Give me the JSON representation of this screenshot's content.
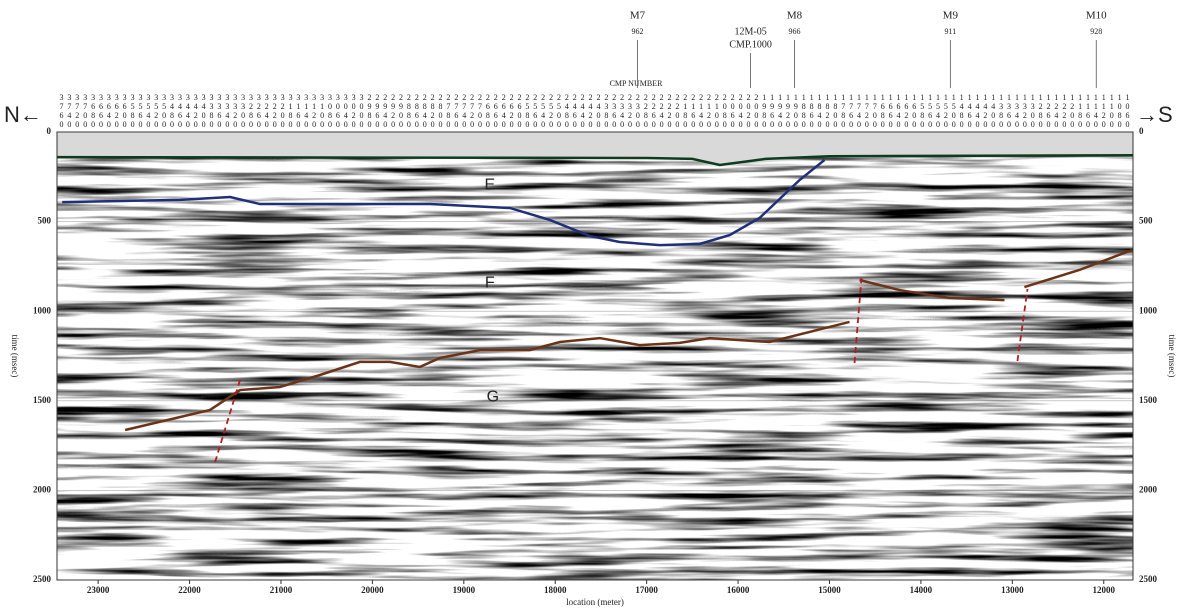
{
  "chart_data": {
    "type": "seismic",
    "left_label": "N←",
    "right_label": "→S",
    "cmp_title": "CMP NUMBER",
    "cmp_numbers": [
      3760,
      3740,
      3720,
      3700,
      3680,
      3660,
      3640,
      3620,
      3600,
      3580,
      3560,
      3540,
      3520,
      3500,
      3480,
      3460,
      3440,
      3420,
      3400,
      3380,
      3360,
      3340,
      3320,
      3300,
      3280,
      3260,
      3240,
      3220,
      3200,
      3180,
      3160,
      3140,
      3120,
      3100,
      3080,
      3060,
      3040,
      3020,
      3000,
      2980,
      2960,
      2940,
      2920,
      2900,
      2880,
      2860,
      2840,
      2820,
      2800,
      2780,
      2760,
      2740,
      2720,
      2700,
      2680,
      2660,
      2640,
      2620,
      2600,
      2580,
      2560,
      2540,
      2520,
      2500,
      2480,
      2460,
      2440,
      2420,
      2400,
      2380,
      2360,
      2340,
      2320,
      2300,
      2280,
      2260,
      2240,
      2220,
      2200,
      2180,
      2160,
      2140,
      2120,
      2100,
      2080,
      2060,
      2040,
      2020,
      2000,
      1980,
      1960,
      1940,
      1920,
      1900,
      1880,
      1860,
      1840,
      1820,
      1800,
      1780,
      1760,
      1740,
      1720,
      1700,
      1680,
      1660,
      1640,
      1620,
      1600,
      1580,
      1560,
      1540,
      1520,
      1500,
      1480,
      1460,
      1440,
      1420,
      1400,
      1380,
      1360,
      1340,
      1320,
      1300,
      1280,
      1260,
      1240,
      1220,
      1200,
      1180,
      1160,
      1140,
      1120,
      1100,
      1080,
      1060
    ],
    "x_label": "location (meter)",
    "y_label": "time (msec)",
    "xlim": [
      23450,
      11680
    ],
    "xticks": [
      23000,
      22000,
      21000,
      20000,
      19000,
      18000,
      17000,
      16000,
      15000,
      14000,
      13000,
      12000
    ],
    "ylim": [
      0,
      2500
    ],
    "yticks": [
      0,
      500,
      1000,
      1500,
      2000,
      2500
    ],
    "markers": [
      {
        "name": "M7",
        "value": 962,
        "location": 17100
      },
      {
        "name": "M8",
        "value": 966,
        "location": 15383
      },
      {
        "name": "M9",
        "value": 911,
        "location": 13678
      },
      {
        "name": "M10",
        "value": 928,
        "location": 12082
      }
    ],
    "crossing": {
      "name": "12M-05",
      "label": "CMP.1000",
      "location": 15863
    },
    "annotations": [
      {
        "text": "E",
        "location": 18716,
        "time": 296
      },
      {
        "text": "F",
        "location": 18716,
        "time": 843
      },
      {
        "text": "G",
        "location": 18683,
        "time": 1479
      }
    ],
    "horizons": [
      {
        "color": "#0d3b1e",
        "x": [
          23450,
          17000,
          16500,
          16200,
          15700,
          15000,
          11680
        ],
        "y": [
          140,
          145,
          150,
          184,
          150,
          135,
          130
        ]
      },
      {
        "color": "#1f2f7a",
        "x": [
          23393,
          22104,
          21557,
          21229,
          19371,
          18497,
          18060,
          17623,
          17295,
          16858,
          16420,
          16092,
          15765,
          15327,
          15054
        ],
        "y": [
          391,
          379,
          363,
          402,
          402,
          424,
          491,
          580,
          614,
          631,
          625,
          575,
          480,
          268,
          156
        ]
      },
      {
        "color": "#6b3418",
        "x": [
          22705,
          21776,
          21448,
          21011,
          20574,
          20136,
          19808,
          19480,
          19262,
          18825,
          18278,
          17950,
          17513,
          17076,
          16639,
          16311,
          15656,
          14781
        ],
        "y": [
          1663,
          1551,
          1440,
          1423,
          1356,
          1283,
          1283,
          1311,
          1261,
          1217,
          1217,
          1172,
          1150,
          1189,
          1177,
          1150,
          1172,
          1060
        ]
      },
      {
        "color": "#6b3418",
        "x": [
          14671,
          14234,
          13688,
          13086
        ],
        "y": [
          826,
          882,
          926,
          938
        ]
      },
      {
        "color": "#6b3418",
        "x": [
          12868,
          12267,
          11688
        ],
        "y": [
          865,
          770,
          658
        ]
      }
    ],
    "faults": [
      {
        "color": "#b02020",
        "x": [
          21721,
          21448
        ],
        "y": [
          1842,
          1384
        ]
      },
      {
        "color": "#b02020",
        "x": [
          14726,
          14650
        ],
        "y": [
          1289,
          815
        ]
      },
      {
        "color": "#b02020",
        "x": [
          12944,
          12834
        ],
        "y": [
          1278,
          876
        ]
      }
    ]
  }
}
